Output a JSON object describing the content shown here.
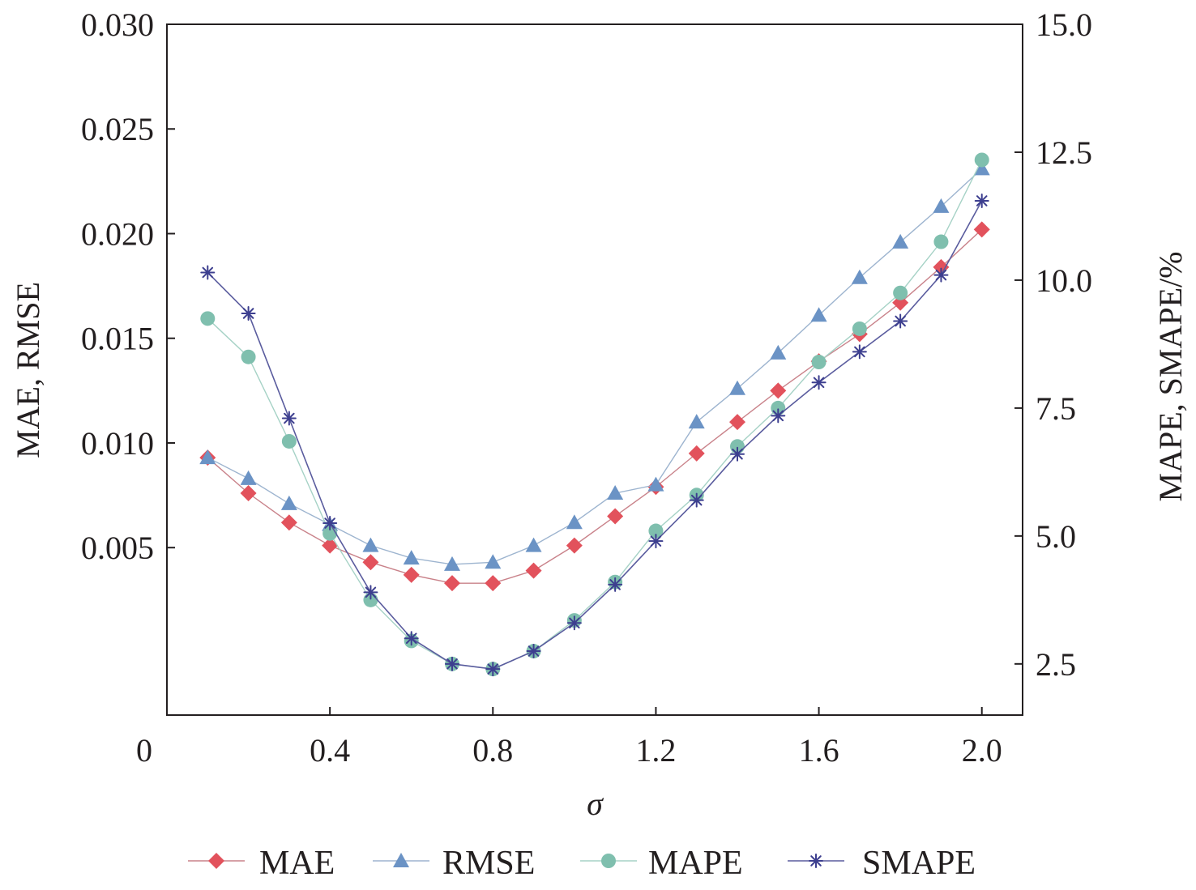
{
  "chart_data": {
    "type": "line",
    "xlabel": "σ",
    "ylabel_left": "MAE, RMSE",
    "ylabel_right": "MAPE, SMAPE/%",
    "xlim": [
      0,
      2.1
    ],
    "ylim_left": [
      -0.003,
      0.03
    ],
    "ylim_right": [
      1.5,
      15.0
    ],
    "x_ticks": [
      0,
      0.4,
      0.8,
      1.2,
      1.6,
      2.0
    ],
    "x_tick_labels": [
      "0",
      "0.4",
      "0.8",
      "1.2",
      "1.6",
      "2.0"
    ],
    "y_left_ticks": [
      0.005,
      0.01,
      0.015,
      0.02,
      0.025,
      0.03
    ],
    "y_left_tick_labels": [
      "0.005",
      "0.010",
      "0.015",
      "0.020",
      "0.025",
      "0.030"
    ],
    "y_right_ticks": [
      2.5,
      5.0,
      7.5,
      10.0,
      12.5,
      15.0
    ],
    "y_right_tick_labels": [
      "2.5",
      "5.0",
      "7.5",
      "10.0",
      "12.5",
      "15.0"
    ],
    "legend_position": "bottom",
    "grid": false,
    "x": [
      0.1,
      0.2,
      0.3,
      0.4,
      0.5,
      0.6,
      0.7,
      0.8,
      0.9,
      1.0,
      1.1,
      1.2,
      1.3,
      1.4,
      1.5,
      1.6,
      1.7,
      1.8,
      1.9,
      2.0
    ],
    "series": [
      {
        "name": "MAE",
        "axis": "left",
        "marker": "diamond",
        "color": "#e2525c",
        "line_color": "#c9828a",
        "values": [
          0.0093,
          0.0076,
          0.0062,
          0.0051,
          0.0043,
          0.0037,
          0.0033,
          0.0033,
          0.0039,
          0.0051,
          0.0065,
          0.0079,
          0.0095,
          0.011,
          0.0125,
          0.0139,
          0.0152,
          0.0167,
          0.0184,
          0.0202
        ]
      },
      {
        "name": "RMSE",
        "axis": "left",
        "marker": "triangle",
        "color": "#6b93c5",
        "line_color": "#9db4cf",
        "values": [
          0.0093,
          0.0083,
          0.0071,
          0.0061,
          0.0051,
          0.0045,
          0.0042,
          0.0043,
          0.0051,
          0.0062,
          0.0076,
          0.008,
          0.011,
          0.0126,
          0.0143,
          0.0161,
          0.0179,
          0.0196,
          0.0213,
          0.0231
        ]
      },
      {
        "name": "MAPE",
        "axis": "right",
        "marker": "circle",
        "color": "#7fbfae",
        "line_color": "#a6d2c6",
        "values": [
          9.25,
          8.5,
          6.85,
          5.05,
          3.75,
          2.95,
          2.5,
          2.4,
          2.75,
          3.35,
          4.1,
          5.1,
          5.8,
          6.75,
          7.5,
          8.4,
          9.05,
          9.75,
          10.75,
          12.35
        ]
      },
      {
        "name": "SMAPE",
        "axis": "right",
        "marker": "asterisk",
        "color": "#3d3f8f",
        "line_color": "#5a5c9e",
        "values": [
          10.15,
          9.35,
          7.3,
          5.25,
          3.9,
          3.0,
          2.5,
          2.4,
          2.75,
          3.3,
          4.05,
          4.9,
          5.7,
          6.6,
          7.35,
          8.0,
          8.6,
          9.2,
          10.1,
          11.55
        ]
      }
    ]
  }
}
